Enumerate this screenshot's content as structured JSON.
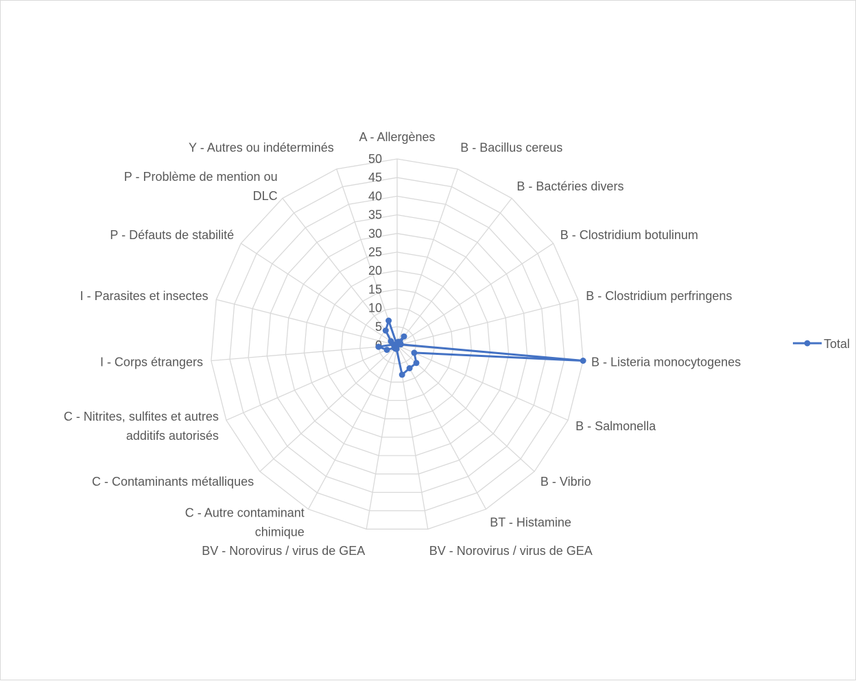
{
  "chart_data": {
    "type": "radar",
    "title": "",
    "categories": [
      [
        "A - Allergènes"
      ],
      [
        "B - Bacillus cereus"
      ],
      [
        "B - Bactéries divers"
      ],
      [
        "B - Clostridium botulinum"
      ],
      [
        "B - Clostridium perfringens"
      ],
      [
        "B - Listeria monocytogenes"
      ],
      [
        "B - Salmonella"
      ],
      [
        "B - Vibrio"
      ],
      [
        "BT - Histamine"
      ],
      [
        "BV - Norovirus / virus de GEA"
      ],
      [
        "BV - Norovirus / virus de GEA"
      ],
      [
        "C - Autre contaminant",
        "chimique"
      ],
      [
        "C - Contaminants métalliques"
      ],
      [
        "C - Nitrites, sulfites et autres",
        "additifs autorisés"
      ],
      [
        "I - Corps étrangers"
      ],
      [
        "I - Parasites et insectes"
      ],
      [
        "P - Défauts de stabilité"
      ],
      [
        "P - Problème de mention ou",
        "DLC"
      ],
      [
        "Y - Autres ou indéterminés"
      ]
    ],
    "series": [
      {
        "name": "Total",
        "color": "#4472c4",
        "values": [
          0,
          1,
          3,
          1,
          1,
          50,
          5,
          7,
          7,
          8,
          1,
          1,
          1,
          3,
          5,
          1,
          2,
          5,
          7
        ]
      }
    ],
    "axis": {
      "min": 0,
      "max": 50,
      "step": 5,
      "ticks": [
        "0",
        "5",
        "10",
        "15",
        "20",
        "25",
        "30",
        "35",
        "40",
        "45",
        "50"
      ]
    },
    "grid": true,
    "legend": {
      "position": "right",
      "label": "Total"
    }
  }
}
